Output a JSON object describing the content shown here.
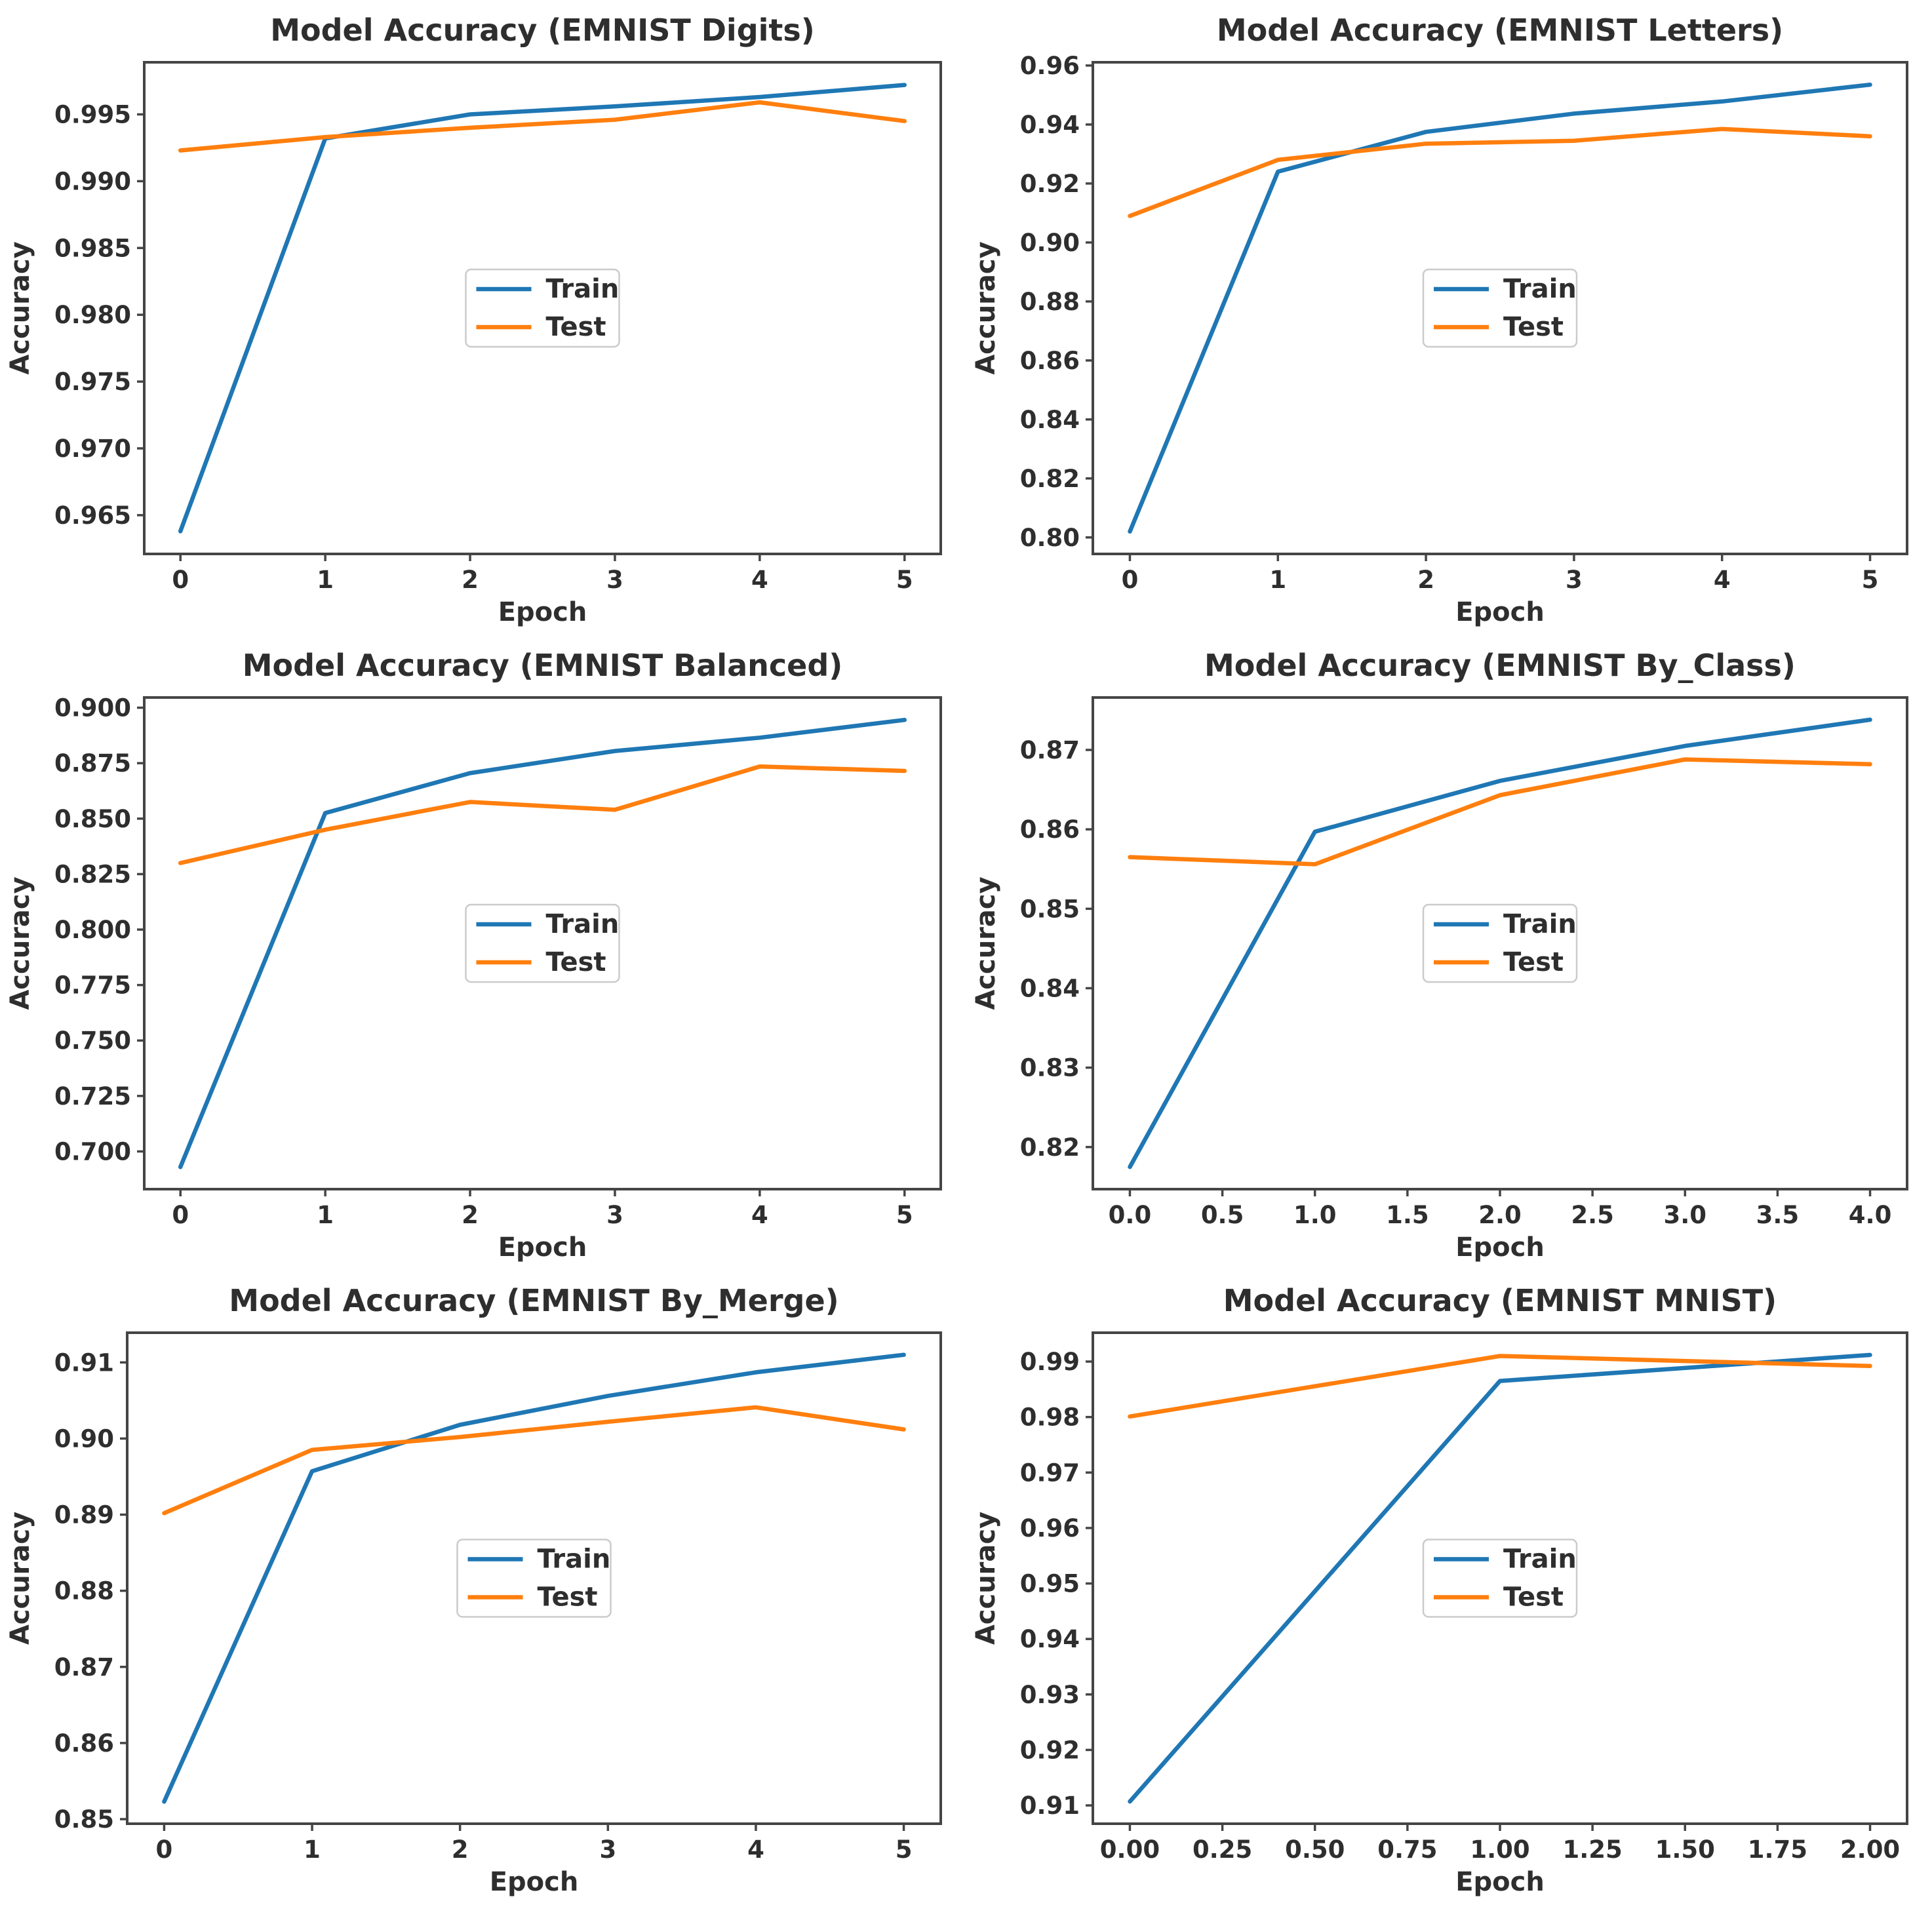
{
  "figure": {
    "background": "#ffffff"
  },
  "theme": {
    "series": [
      "#1f77b4",
      "#ff7f0e"
    ],
    "spine": "#454545",
    "text": "#2e2e2e",
    "legend_border": "#cbcbcb",
    "legend_bg": "rgba(255,255,255,0.85)"
  },
  "legend": {
    "labels": [
      "Train",
      "Test"
    ],
    "position": "center"
  },
  "chart_data": [
    {
      "type": "line",
      "title": "Model Accuracy (EMNIST Digits)",
      "xlabel": "Epoch",
      "ylabel": "Accuracy",
      "xlim": [
        -0.25,
        5.25
      ],
      "ylim": [
        0.9621,
        0.9989
      ],
      "grid": false,
      "legend_position": "center",
      "x_ticks": {
        "values": [
          0,
          1,
          2,
          3,
          4,
          5
        ],
        "labels": [
          "0",
          "1",
          "2",
          "3",
          "4",
          "5"
        ]
      },
      "y_ticks": {
        "values": [
          0.965,
          0.97,
          0.975,
          0.98,
          0.985,
          0.99,
          0.995
        ],
        "labels": [
          "0.965",
          "0.970",
          "0.975",
          "0.980",
          "0.985",
          "0.990",
          "0.995"
        ]
      },
      "series": [
        {
          "name": "Train",
          "x": [
            0,
            1,
            2,
            3,
            4,
            5
          ],
          "y": [
            0.9638,
            0.9932,
            0.995,
            0.9956,
            0.9963,
            0.9972
          ]
        },
        {
          "name": "Test",
          "x": [
            0,
            1,
            2,
            3,
            4,
            5
          ],
          "y": [
            0.9923,
            0.9933,
            0.994,
            0.9946,
            0.9959,
            0.9945
          ]
        }
      ]
    },
    {
      "type": "line",
      "title": "Model Accuracy (EMNIST Letters)",
      "xlabel": "Epoch",
      "ylabel": "Accuracy",
      "xlim": [
        -0.25,
        5.25
      ],
      "ylim": [
        0.7944,
        0.9611
      ],
      "grid": false,
      "legend_position": "center",
      "x_ticks": {
        "values": [
          0,
          1,
          2,
          3,
          4,
          5
        ],
        "labels": [
          "0",
          "1",
          "2",
          "3",
          "4",
          "5"
        ]
      },
      "y_ticks": {
        "values": [
          0.8,
          0.82,
          0.84,
          0.86,
          0.88,
          0.9,
          0.92,
          0.94,
          0.96
        ],
        "labels": [
          "0.80",
          "0.82",
          "0.84",
          "0.86",
          "0.88",
          "0.90",
          "0.92",
          "0.94",
          "0.96"
        ]
      },
      "series": [
        {
          "name": "Train",
          "x": [
            0,
            1,
            2,
            3,
            4,
            5
          ],
          "y": [
            0.802,
            0.924,
            0.9375,
            0.9437,
            0.9478,
            0.9535
          ]
        },
        {
          "name": "Test",
          "x": [
            0,
            1,
            2,
            3,
            4,
            5
          ],
          "y": [
            0.909,
            0.928,
            0.9335,
            0.9345,
            0.9385,
            0.936
          ]
        }
      ]
    },
    {
      "type": "line",
      "title": "Model Accuracy (EMNIST Balanced)",
      "xlabel": "Epoch",
      "ylabel": "Accuracy",
      "xlim": [
        -0.25,
        5.25
      ],
      "ylim": [
        0.683,
        0.9046
      ],
      "grid": false,
      "legend_position": "center",
      "x_ticks": {
        "values": [
          0,
          1,
          2,
          3,
          4,
          5
        ],
        "labels": [
          "0",
          "1",
          "2",
          "3",
          "4",
          "5"
        ]
      },
      "y_ticks": {
        "values": [
          0.7,
          0.725,
          0.75,
          0.775,
          0.8,
          0.825,
          0.85,
          0.875,
          0.9
        ],
        "labels": [
          "0.700",
          "0.725",
          "0.750",
          "0.775",
          "0.800",
          "0.825",
          "0.850",
          "0.875",
          "0.900"
        ]
      },
      "series": [
        {
          "name": "Train",
          "x": [
            0,
            1,
            2,
            3,
            4,
            5
          ],
          "y": [
            0.693,
            0.8525,
            0.8705,
            0.8805,
            0.8865,
            0.8945
          ]
        },
        {
          "name": "Test",
          "x": [
            0,
            1,
            2,
            3,
            4,
            5
          ],
          "y": [
            0.83,
            0.845,
            0.8575,
            0.854,
            0.8735,
            0.8715
          ]
        }
      ]
    },
    {
      "type": "line",
      "title": "Model Accuracy (EMNIST By_Class)",
      "xlabel": "Epoch",
      "ylabel": "Accuracy",
      "xlim": [
        -0.2,
        4.2
      ],
      "ylim": [
        0.8147,
        0.8766
      ],
      "grid": false,
      "legend_position": "center",
      "x_ticks": {
        "values": [
          0.0,
          0.5,
          1.0,
          1.5,
          2.0,
          2.5,
          3.0,
          3.5,
          4.0
        ],
        "labels": [
          "0.0",
          "0.5",
          "1.0",
          "1.5",
          "2.0",
          "2.5",
          "3.0",
          "3.5",
          "4.0"
        ]
      },
      "y_ticks": {
        "values": [
          0.82,
          0.83,
          0.84,
          0.85,
          0.86,
          0.87
        ],
        "labels": [
          "0.82",
          "0.83",
          "0.84",
          "0.85",
          "0.86",
          "0.87"
        ]
      },
      "series": [
        {
          "name": "Train",
          "x": [
            0,
            1,
            2,
            3,
            4
          ],
          "y": [
            0.8175,
            0.8597,
            0.8661,
            0.8705,
            0.8738
          ]
        },
        {
          "name": "Test",
          "x": [
            0,
            1,
            2,
            3,
            4
          ],
          "y": [
            0.8565,
            0.8556,
            0.8643,
            0.8688,
            0.8682
          ]
        }
      ]
    },
    {
      "type": "line",
      "title": "Model Accuracy (EMNIST By_Merge)",
      "xlabel": "Epoch",
      "ylabel": "Accuracy",
      "xlim": [
        -0.25,
        5.25
      ],
      "ylim": [
        0.8494,
        0.9139
      ],
      "grid": false,
      "legend_position": "center",
      "x_ticks": {
        "values": [
          0,
          1,
          2,
          3,
          4,
          5
        ],
        "labels": [
          "0",
          "1",
          "2",
          "3",
          "4",
          "5"
        ]
      },
      "y_ticks": {
        "values": [
          0.85,
          0.86,
          0.87,
          0.88,
          0.89,
          0.9,
          0.91
        ],
        "labels": [
          "0.85",
          "0.86",
          "0.87",
          "0.88",
          "0.89",
          "0.90",
          "0.91"
        ]
      },
      "series": [
        {
          "name": "Train",
          "x": [
            0,
            1,
            2,
            3,
            4,
            5
          ],
          "y": [
            0.8523,
            0.8957,
            0.9018,
            0.9056,
            0.9087,
            0.911
          ]
        },
        {
          "name": "Test",
          "x": [
            0,
            1,
            2,
            3,
            4,
            5
          ],
          "y": [
            0.8902,
            0.8985,
            0.9002,
            0.9022,
            0.9041,
            0.9012
          ]
        }
      ]
    },
    {
      "type": "line",
      "title": "Model Accuracy (EMNIST MNIST)",
      "xlabel": "Epoch",
      "ylabel": "Accuracy",
      "xlim": [
        -0.1,
        2.1
      ],
      "ylim": [
        0.9067,
        0.9952
      ],
      "grid": false,
      "legend_position": "center",
      "x_ticks": {
        "values": [
          0.0,
          0.25,
          0.5,
          0.75,
          1.0,
          1.25,
          1.5,
          1.75,
          2.0
        ],
        "labels": [
          "0.00",
          "0.25",
          "0.50",
          "0.75",
          "1.00",
          "1.25",
          "1.50",
          "1.75",
          "2.00"
        ]
      },
      "y_ticks": {
        "values": [
          0.91,
          0.92,
          0.93,
          0.94,
          0.95,
          0.96,
          0.97,
          0.98,
          0.99
        ],
        "labels": [
          "0.91",
          "0.92",
          "0.93",
          "0.94",
          "0.95",
          "0.96",
          "0.97",
          "0.98",
          "0.99"
        ]
      },
      "series": [
        {
          "name": "Train",
          "x": [
            0,
            1,
            2
          ],
          "y": [
            0.9107,
            0.9865,
            0.9912
          ]
        },
        {
          "name": "Test",
          "x": [
            0,
            1,
            2
          ],
          "y": [
            0.9801,
            0.991,
            0.9892
          ]
        }
      ]
    }
  ]
}
